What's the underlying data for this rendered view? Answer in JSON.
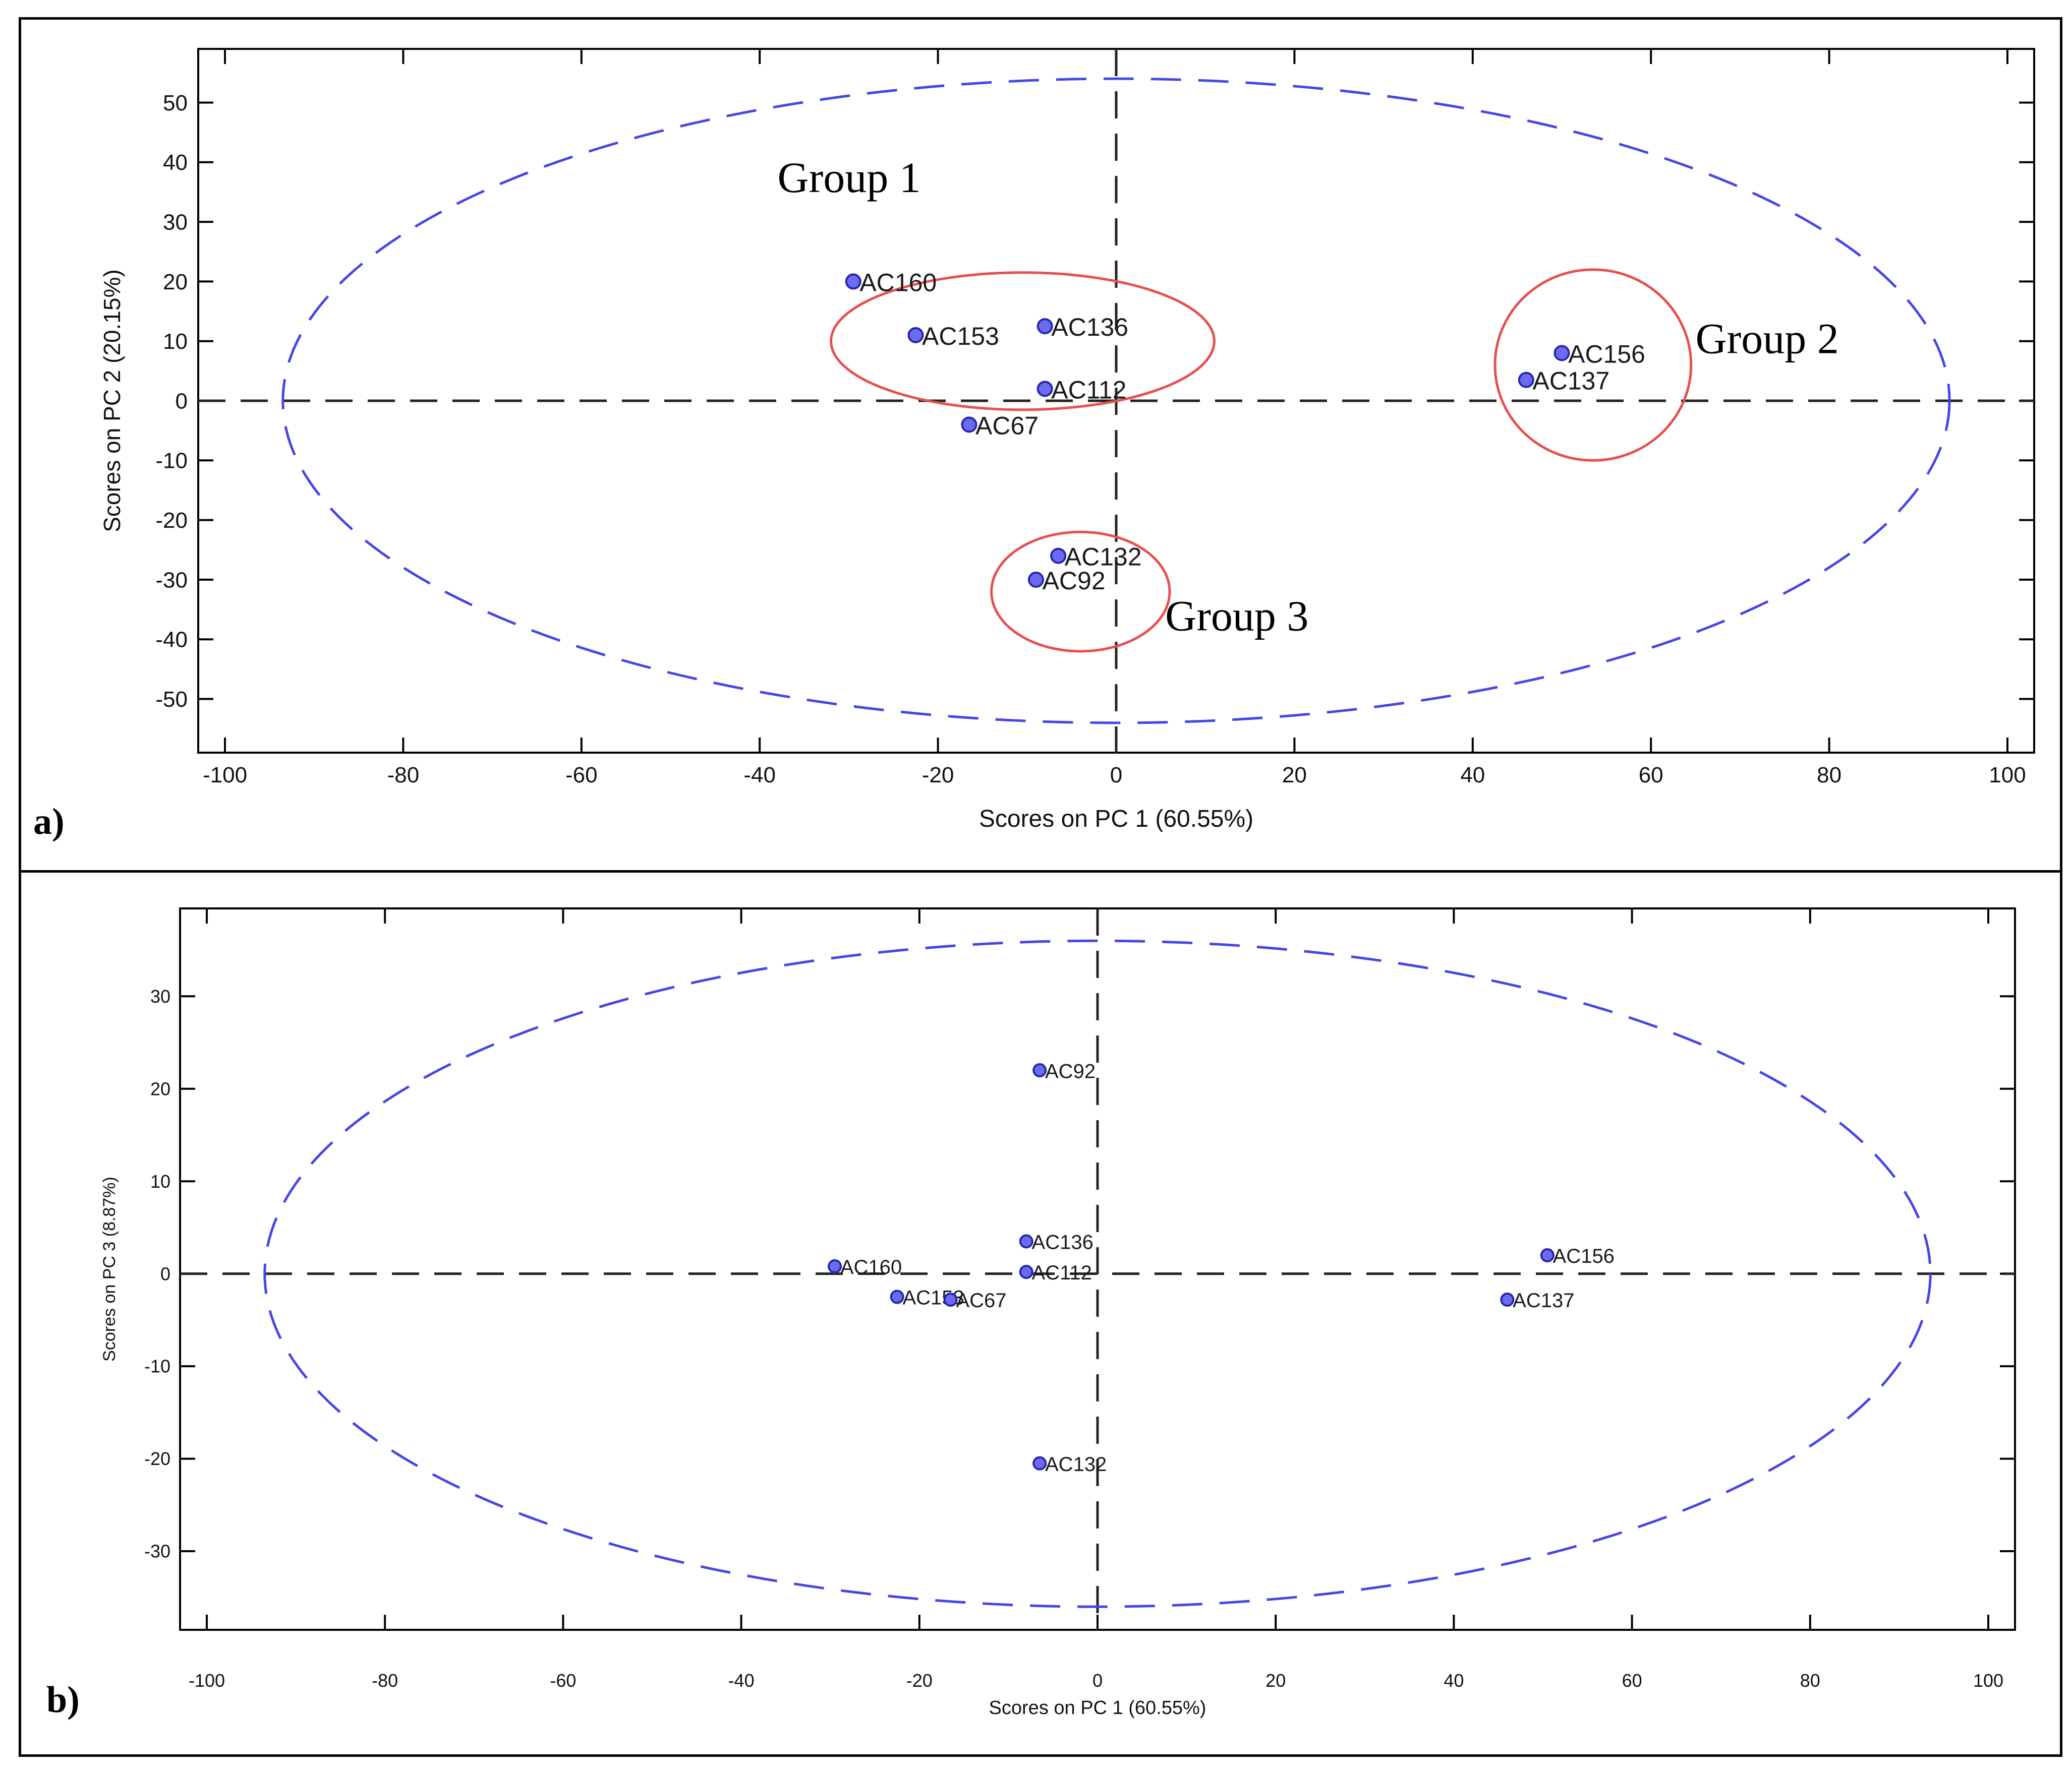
{
  "panels": {
    "a": {
      "label": "a)"
    },
    "b": {
      "label": "b)"
    }
  },
  "colors": {
    "ellipse": "#4646e6",
    "group_circle": "#e55050",
    "point_fill": "#6b6bf0",
    "point_stroke": "#2525b0",
    "axis": "#000000"
  },
  "chart_data": [
    {
      "type": "scatter",
      "panel": "a",
      "title": "",
      "xlabel": "Scores on PC 1 (60.55%)",
      "ylabel": "Scores on PC 2 (20.15%)",
      "xlim": [
        -103,
        103
      ],
      "ylim": [
        -59,
        59
      ],
      "xticks": [
        -100,
        -80,
        -60,
        -40,
        -20,
        0,
        20,
        40,
        60,
        80,
        100
      ],
      "yticks": [
        -50,
        -40,
        -30,
        -20,
        -10,
        0,
        10,
        20,
        30,
        40,
        50
      ],
      "confidence_ellipse": {
        "cx": 0,
        "cy": 0,
        "rx": 93.5,
        "ry": 54
      },
      "points": [
        {
          "name": "AC160",
          "x": -29.5,
          "y": 20
        },
        {
          "name": "AC153",
          "x": -22.5,
          "y": 11
        },
        {
          "name": "AC136",
          "x": -8,
          "y": 12.5
        },
        {
          "name": "AC112",
          "x": -8,
          "y": 2
        },
        {
          "name": "AC67",
          "x": -16.5,
          "y": -4
        },
        {
          "name": "AC156",
          "x": 50,
          "y": 8
        },
        {
          "name": "AC137",
          "x": 46,
          "y": 3.5
        },
        {
          "name": "AC132",
          "x": -6.5,
          "y": -26
        },
        {
          "name": "AC92",
          "x": -9,
          "y": -30
        }
      ],
      "groups": [
        {
          "name": "Group 1",
          "cx": -10.5,
          "cy": 10,
          "rx": 21.5,
          "ry": 11.5,
          "text_x": -38,
          "text_y": 35
        },
        {
          "name": "Group 2",
          "cx": 53.5,
          "cy": 6,
          "rx": 11,
          "ry": 16,
          "text_x": 65,
          "text_y": 8
        },
        {
          "name": "Group 3",
          "cx": -4,
          "cy": -32,
          "rx": 10,
          "ry": 10,
          "text_x": 5.5,
          "text_y": -38.5
        }
      ]
    },
    {
      "type": "scatter",
      "panel": "b",
      "title": "",
      "xlabel": "Scores on PC 1 (60.55%)",
      "ylabel": "Scores on PC 3 (8.87%)",
      "xlim": [
        -103,
        103
      ],
      "ylim": [
        -38.5,
        39.5
      ],
      "xticks": [
        -100,
        -80,
        -60,
        -40,
        -20,
        0,
        20,
        40,
        60,
        80,
        100
      ],
      "yticks": [
        -30,
        -20,
        -10,
        0,
        10,
        20,
        30
      ],
      "confidence_ellipse": {
        "cx": 0,
        "cy": 0,
        "rx": 93.5,
        "ry": 36
      },
      "points": [
        {
          "name": "AC92",
          "x": -6.5,
          "y": 22
        },
        {
          "name": "AC136",
          "x": -8,
          "y": 3.5
        },
        {
          "name": "AC160",
          "x": -29.5,
          "y": 0.8
        },
        {
          "name": "AC112",
          "x": -8,
          "y": 0.2
        },
        {
          "name": "AC153",
          "x": -22.5,
          "y": -2.5
        },
        {
          "name": "AC67",
          "x": -16.5,
          "y": -2.8
        },
        {
          "name": "AC156",
          "x": 50.5,
          "y": 2
        },
        {
          "name": "AC137",
          "x": 46,
          "y": -2.8
        },
        {
          "name": "AC132",
          "x": -6.5,
          "y": -20.5
        }
      ],
      "groups": []
    }
  ]
}
